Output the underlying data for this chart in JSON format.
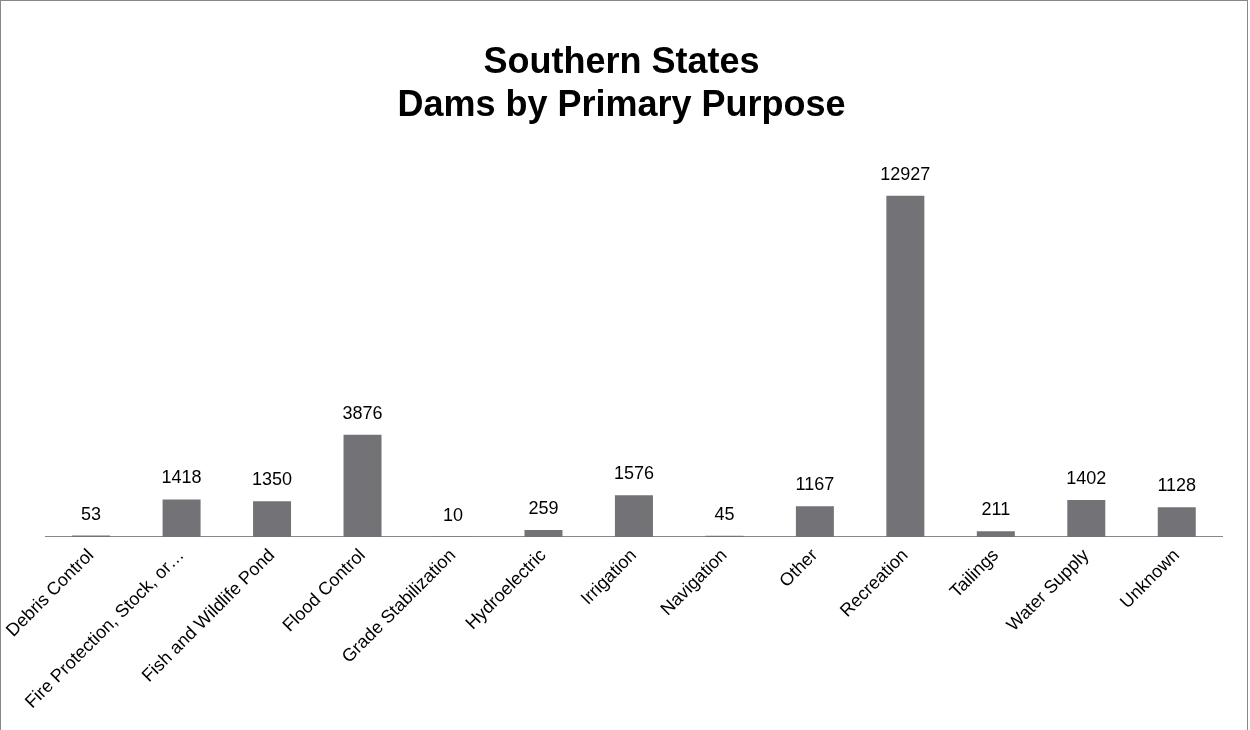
{
  "chart_data": {
    "type": "bar",
    "title": "Southern States\nDams by Primary Purpose",
    "categories": [
      "Debris Control",
      "Fire Protection, Stock, or…",
      "Fish and Wildlife Pond",
      "Flood Control",
      "Grade Stabilization",
      "Hydroelectric",
      "Irrigation",
      "Navigation",
      "Other",
      "Recreation",
      "Tailings",
      "Water Supply",
      "Unknown"
    ],
    "values": [
      53,
      1418,
      1350,
      3876,
      10,
      259,
      1576,
      45,
      1167,
      12927,
      211,
      1402,
      1128
    ],
    "color": "#737277",
    "data_labels": true,
    "grid": false,
    "legend": false
  }
}
